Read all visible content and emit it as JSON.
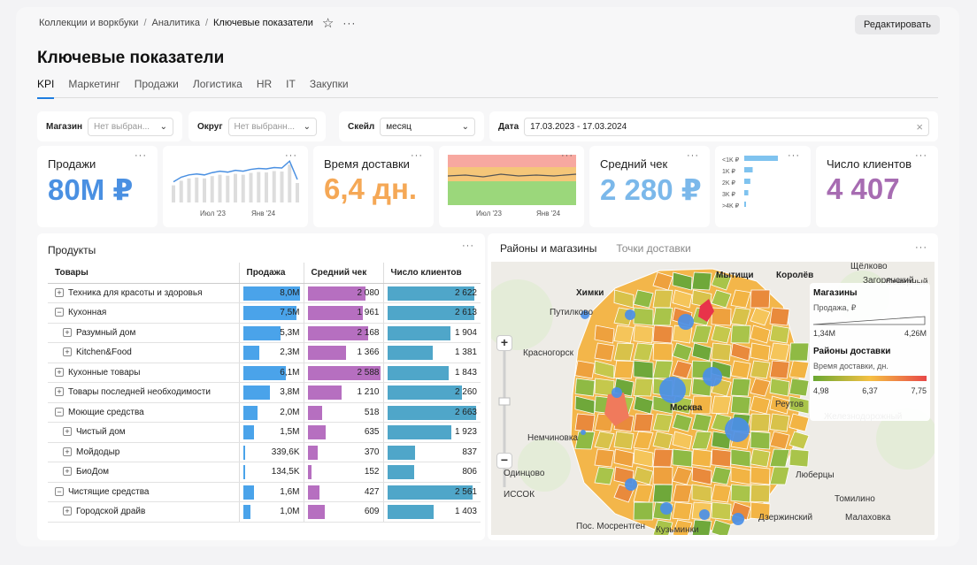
{
  "breadcrumb": {
    "items": [
      "Коллекции и воркбуки",
      "Аналитика"
    ],
    "current": "Ключевые показатели",
    "separator": "/"
  },
  "actions": {
    "edit": "Редактировать",
    "more": "···",
    "star": "☆"
  },
  "page_title": "Ключевые показатели",
  "tabs": [
    {
      "label": "KPI",
      "active": true
    },
    {
      "label": "Маркетинг"
    },
    {
      "label": "Продажи"
    },
    {
      "label": "Логистика"
    },
    {
      "label": "HR"
    },
    {
      "label": "IT"
    },
    {
      "label": "Закупки"
    }
  ],
  "filters": {
    "store": {
      "label": "Магазин",
      "placeholder": "Нет выбран..."
    },
    "district": {
      "label": "Округ",
      "placeholder": "Нет выбранн..."
    },
    "scale": {
      "label": "Скейл",
      "value": "месяц"
    },
    "date": {
      "label": "Дата",
      "value": "17.03.2023 - 17.03.2024",
      "clear": "×"
    }
  },
  "kpis": {
    "sales": {
      "title": "Продажи",
      "value": "80M ₽",
      "color": "#4a90e2"
    },
    "delivery": {
      "title": "Время доставки",
      "value": "6,4 дн.",
      "color": "#f5a856"
    },
    "check": {
      "title": "Средний чек",
      "value": "2 280 ₽",
      "color": "#7bb8ea"
    },
    "clients": {
      "title": "Число клиентов",
      "value": "4 407",
      "color": "#a76cb2"
    }
  },
  "mini_charts": {
    "sales_line": {
      "ticks": [
        "Июл '23",
        "Янв '24"
      ],
      "values": [
        0.45,
        0.55,
        0.6,
        0.62,
        0.6,
        0.65,
        0.68,
        0.66,
        0.7,
        0.68,
        0.72,
        0.74,
        0.73,
        0.76,
        0.75,
        0.9,
        0.5
      ]
    },
    "delivery_area": {
      "ticks": [
        "Июл '23",
        "Янв '24"
      ]
    },
    "check_hist": {
      "labels": [
        "<1K ₽",
        "1K ₽",
        "2K ₽",
        "3K ₽",
        ">4K ₽"
      ],
      "values": [
        1.0,
        0.25,
        0.18,
        0.12,
        0.05
      ]
    }
  },
  "products": {
    "title": "Продукты",
    "columns": [
      "Товары",
      "Продажа",
      "Средний чек",
      "Число клиентов"
    ],
    "colors": {
      "sales": "#4aa3ea",
      "check": "#b66fc0",
      "clients": "#4fa6c9"
    },
    "rows": [
      {
        "name": "Техника для красоты и здоровья",
        "toggle": "+",
        "indent": 0,
        "sales": "8,0M",
        "sales_v": 8.0,
        "check": "2 080",
        "check_v": 2080,
        "clients": "2 622",
        "clients_v": 2622
      },
      {
        "name": "Кухонная",
        "toggle": "−",
        "indent": 0,
        "sales": "7,5M",
        "sales_v": 7.5,
        "check": "1 961",
        "check_v": 1961,
        "clients": "2 613",
        "clients_v": 2613
      },
      {
        "name": "Разумный дом",
        "toggle": "+",
        "indent": 1,
        "sales": "5,3M",
        "sales_v": 5.3,
        "check": "2 168",
        "check_v": 2168,
        "clients": "1 904",
        "clients_v": 1904
      },
      {
        "name": "Kitchen&Food",
        "toggle": "+",
        "indent": 1,
        "sales": "2,3M",
        "sales_v": 2.3,
        "check": "1 366",
        "check_v": 1366,
        "clients": "1 381",
        "clients_v": 1381
      },
      {
        "name": "Кухонные товары",
        "toggle": "+",
        "indent": 0,
        "sales": "6,1M",
        "sales_v": 6.1,
        "check": "2 588",
        "check_v": 2588,
        "clients": "1 843",
        "clients_v": 1843
      },
      {
        "name": "Товары последней необходимости",
        "toggle": "+",
        "indent": 0,
        "sales": "3,8M",
        "sales_v": 3.8,
        "check": "1 210",
        "check_v": 1210,
        "clients": "2 260",
        "clients_v": 2260
      },
      {
        "name": "Моющие средства",
        "toggle": "−",
        "indent": 0,
        "sales": "2,0M",
        "sales_v": 2.0,
        "check": "518",
        "check_v": 518,
        "clients": "2 663",
        "clients_v": 2663
      },
      {
        "name": "Чистый дом",
        "toggle": "+",
        "indent": 1,
        "sales": "1,5M",
        "sales_v": 1.5,
        "check": "635",
        "check_v": 635,
        "clients": "1 923",
        "clients_v": 1923
      },
      {
        "name": "Мойдодыр",
        "toggle": "+",
        "indent": 1,
        "sales": "339,6K",
        "sales_v": 0.34,
        "check": "370",
        "check_v": 370,
        "clients": "837",
        "clients_v": 837
      },
      {
        "name": "БиоДом",
        "toggle": "+",
        "indent": 1,
        "sales": "134,5K",
        "sales_v": 0.13,
        "check": "152",
        "check_v": 152,
        "clients": "806",
        "clients_v": 806
      },
      {
        "name": "Чистящие средства",
        "toggle": "−",
        "indent": 0,
        "sales": "1,6M",
        "sales_v": 1.6,
        "check": "427",
        "check_v": 427,
        "clients": "2 561",
        "clients_v": 2561
      },
      {
        "name": "Городской драйв",
        "toggle": "+",
        "indent": 1,
        "sales": "1,0M",
        "sales_v": 1.0,
        "check": "609",
        "check_v": 609,
        "clients": "1 403",
        "clients_v": 1403
      }
    ]
  },
  "map": {
    "tabs": [
      {
        "label": "Районы и магазины",
        "active": true
      },
      {
        "label": "Точки доставки"
      }
    ],
    "zoom_in": "+",
    "zoom_out": "−",
    "labels": [
      "Химки",
      "Мытищи",
      "Королёв",
      "Щёлково",
      "Путилково",
      "Красногорск",
      "Реутов",
      "Загорянский",
      "Северный",
      "Железнодорожный",
      "Немчиновка",
      "Одинцово",
      "Москва",
      "Люберцы",
      "Томилино",
      "Малаховка",
      "Дзержинский",
      "Пос. Мосрентген",
      "Кузьминки",
      "ИССОК"
    ],
    "legend": {
      "stores_title": "Магазины",
      "stores_subtitle": "Продажа, ₽",
      "stores_min": "1,34M",
      "stores_max": "4,26M",
      "districts_title": "Районы доставки",
      "districts_subtitle": "Время доставки, дн.",
      "districts_ticks": [
        "4,98",
        "6,37",
        "7,75"
      ]
    }
  }
}
